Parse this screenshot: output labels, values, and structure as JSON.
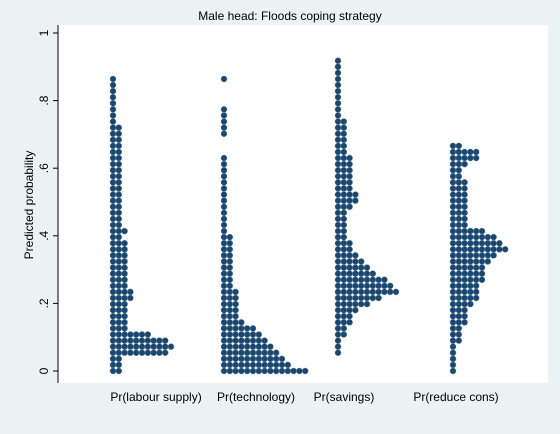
{
  "chart_data": {
    "type": "dot",
    "title": "Male head: Floods coping strategy",
    "ylabel": "Predicted probability",
    "categories": [
      "Pr(labour supply)",
      "Pr(technology)",
      "Pr(savings)",
      "Pr(reduce cons)"
    ],
    "color": "#1a476f",
    "ylim": [
      0,
      1
    ],
    "yticks": [
      0,
      {
        "value": 0.2,
        "label": ".2"
      },
      {
        "value": 0.4,
        "label": ".4"
      },
      {
        "value": 0.6,
        "label": ".6"
      },
      {
        "value": 0.8,
        "label": ".8"
      },
      1
    ],
    "y": [
      0,
      0.018,
      0.036,
      0.054,
      0.072,
      0.09,
      0.108,
      0.126,
      0.144,
      0.162,
      0.18,
      0.198,
      0.216,
      0.234,
      0.252,
      0.27,
      0.288,
      0.306,
      0.324,
      0.342,
      0.36,
      0.378,
      0.396,
      0.414,
      0.432,
      0.45,
      0.468,
      0.486,
      0.504,
      0.522,
      0.54,
      0.558,
      0.576,
      0.594,
      0.612,
      0.63,
      0.648,
      0.666,
      0.684,
      0.702,
      0.72,
      0.738,
      0.756,
      0.774,
      0.792,
      0.81,
      0.828,
      0.846,
      0.864,
      0.882,
      0.9,
      0.918
    ],
    "counts": [
      [
        2,
        2,
        2,
        10,
        11,
        10,
        7,
        3,
        3,
        3,
        3,
        3,
        4,
        4,
        3,
        3,
        3,
        3,
        3,
        3,
        3,
        3,
        2,
        3,
        2,
        2,
        2,
        2,
        2,
        2,
        2,
        2,
        2,
        2,
        2,
        2,
        2,
        2,
        2,
        2,
        2,
        1,
        1,
        1,
        1,
        1,
        1,
        1,
        1,
        0,
        0,
        0
      ],
      [
        15,
        12,
        11,
        10,
        9,
        8,
        7,
        6,
        4,
        3,
        3,
        3,
        3,
        3,
        2,
        2,
        2,
        2,
        2,
        2,
        2,
        2,
        2,
        1,
        1,
        1,
        1,
        1,
        1,
        1,
        1,
        1,
        1,
        1,
        1,
        1,
        0,
        0,
        0,
        1,
        1,
        1,
        1,
        1,
        0,
        0,
        0,
        0,
        1,
        0,
        0,
        0
      ],
      [
        0,
        0,
        0,
        1,
        1,
        1,
        2,
        2,
        3,
        3,
        4,
        6,
        8,
        11,
        10,
        9,
        7,
        6,
        5,
        4,
        3,
        3,
        2,
        2,
        2,
        2,
        2,
        3,
        4,
        4,
        3,
        3,
        3,
        3,
        3,
        3,
        2,
        2,
        2,
        2,
        2,
        2,
        1,
        1,
        1,
        1,
        1,
        1,
        1,
        1,
        1,
        1
      ],
      [
        1,
        1,
        1,
        1,
        1,
        2,
        2,
        2,
        3,
        3,
        3,
        4,
        5,
        5,
        5,
        6,
        6,
        6,
        7,
        8,
        10,
        9,
        8,
        6,
        3,
        3,
        3,
        3,
        3,
        3,
        3,
        3,
        2,
        2,
        3,
        5,
        5,
        2,
        0,
        0,
        0,
        0,
        0,
        0,
        0,
        0,
        0,
        0,
        0,
        0,
        0,
        0
      ]
    ]
  }
}
